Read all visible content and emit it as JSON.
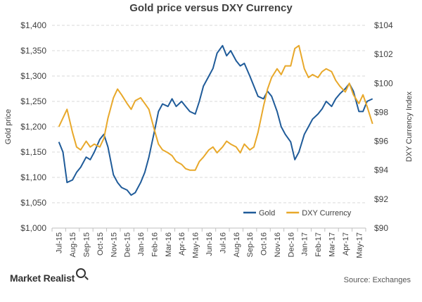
{
  "chart_data": {
    "type": "line",
    "title": "Gold price  versus DXY Currency",
    "ylabel_left": "Gold price",
    "ylabel_right": "DXY Currency Index",
    "xlabel": "",
    "x_categories": [
      "Jul-15",
      "Aug-15",
      "Sep-15",
      "Oct-15",
      "Nov-15",
      "Dec-15",
      "Jan-16",
      "Feb-16",
      "Mar-16",
      "Apr-16",
      "May-16",
      "Jun-16",
      "Jul-16",
      "Aug-16",
      "Sep-16",
      "Oct-16",
      "Nov-16",
      "Dec-16",
      "Jan-17",
      "Feb-17",
      "Mar-17",
      "Apr-17",
      "May-17"
    ],
    "y_left": {
      "range": [
        1000,
        1400
      ],
      "ticks": [
        1000,
        1050,
        1100,
        1150,
        1200,
        1250,
        1300,
        1350,
        1400
      ],
      "tick_labels": [
        "$1,000",
        "$1,050",
        "$1,100",
        "$1,150",
        "$1,200",
        "$1,250",
        "$1,300",
        "$1,350",
        "$1,400"
      ]
    },
    "y_right": {
      "range": [
        90,
        104
      ],
      "ticks": [
        90,
        92,
        94,
        96,
        98,
        100,
        102,
        104
      ],
      "tick_labels": [
        "$90",
        "$92",
        "$94",
        "$96",
        "$98",
        "$100",
        "$102",
        "$104"
      ]
    },
    "grid": true,
    "legend_position": "bottom-right",
    "series": [
      {
        "name": "Gold",
        "axis": "left",
        "color": "#1F5B99",
        "x": [
          0,
          0.3,
          0.6,
          1.0,
          1.3,
          1.6,
          2.0,
          2.3,
          2.6,
          3.0,
          3.3,
          3.6,
          4.0,
          4.3,
          4.6,
          5.0,
          5.3,
          5.6,
          6.0,
          6.3,
          6.6,
          7.0,
          7.3,
          7.6,
          8.0,
          8.3,
          8.6,
          9.0,
          9.3,
          9.6,
          10.0,
          10.3,
          10.6,
          11.0,
          11.3,
          11.6,
          12.0,
          12.3,
          12.6,
          13.0,
          13.3,
          13.6,
          14.0,
          14.3,
          14.6,
          15.0,
          15.3,
          15.6,
          16.0,
          16.3,
          16.6,
          17.0,
          17.3,
          17.6,
          18.0,
          18.3,
          18.6,
          19.0,
          19.3,
          19.6,
          20.0,
          20.3,
          20.6,
          21.0,
          21.3,
          21.6,
          22.0,
          22.3,
          22.6,
          23.0
        ],
        "values": [
          1170,
          1150,
          1090,
          1095,
          1110,
          1120,
          1140,
          1135,
          1150,
          1175,
          1185,
          1160,
          1105,
          1090,
          1080,
          1075,
          1065,
          1070,
          1090,
          1110,
          1140,
          1190,
          1230,
          1245,
          1240,
          1255,
          1240,
          1250,
          1240,
          1230,
          1225,
          1250,
          1280,
          1300,
          1315,
          1345,
          1360,
          1340,
          1350,
          1330,
          1320,
          1325,
          1300,
          1280,
          1260,
          1255,
          1270,
          1260,
          1230,
          1200,
          1185,
          1170,
          1135,
          1150,
          1185,
          1200,
          1215,
          1225,
          1235,
          1250,
          1240,
          1255,
          1265,
          1275,
          1285,
          1270,
          1230,
          1230,
          1250,
          1255
        ]
      },
      {
        "name": "DXY Currency",
        "axis": "right",
        "color": "#E8A82A",
        "x": [
          0,
          0.3,
          0.6,
          1.0,
          1.3,
          1.6,
          2.0,
          2.3,
          2.6,
          3.0,
          3.3,
          3.6,
          4.0,
          4.3,
          4.6,
          5.0,
          5.3,
          5.6,
          6.0,
          6.3,
          6.6,
          7.0,
          7.3,
          7.6,
          8.0,
          8.3,
          8.6,
          9.0,
          9.3,
          9.6,
          10.0,
          10.3,
          10.6,
          11.0,
          11.3,
          11.6,
          12.0,
          12.3,
          12.6,
          13.0,
          13.3,
          13.6,
          14.0,
          14.3,
          14.6,
          15.0,
          15.3,
          15.6,
          16.0,
          16.3,
          16.6,
          17.0,
          17.3,
          17.6,
          18.0,
          18.3,
          18.6,
          19.0,
          19.3,
          19.6,
          20.0,
          20.3,
          20.6,
          21.0,
          21.3,
          21.6,
          22.0,
          22.3,
          22.6,
          23.0
        ],
        "values": [
          97.0,
          97.6,
          98.2,
          96.6,
          95.6,
          95.4,
          96.0,
          95.6,
          95.8,
          95.6,
          96.2,
          97.6,
          99.0,
          99.6,
          99.2,
          98.6,
          98.2,
          98.8,
          99.0,
          98.6,
          98.2,
          96.8,
          95.8,
          95.4,
          95.2,
          95.0,
          94.6,
          94.4,
          94.1,
          94.0,
          94.0,
          94.6,
          94.9,
          95.4,
          95.6,
          95.2,
          95.6,
          96.0,
          95.8,
          95.6,
          95.2,
          95.8,
          95.4,
          95.6,
          96.6,
          98.4,
          99.6,
          100.4,
          101.0,
          100.6,
          101.2,
          101.2,
          102.4,
          102.6,
          101.0,
          100.4,
          100.6,
          100.4,
          100.8,
          101.0,
          100.8,
          100.2,
          99.8,
          99.4,
          100.0,
          99.2,
          98.6,
          99.2,
          98.4,
          97.2
        ]
      }
    ]
  },
  "footer": {
    "brand": "Market Realist",
    "source": "Source: Exchanges"
  }
}
